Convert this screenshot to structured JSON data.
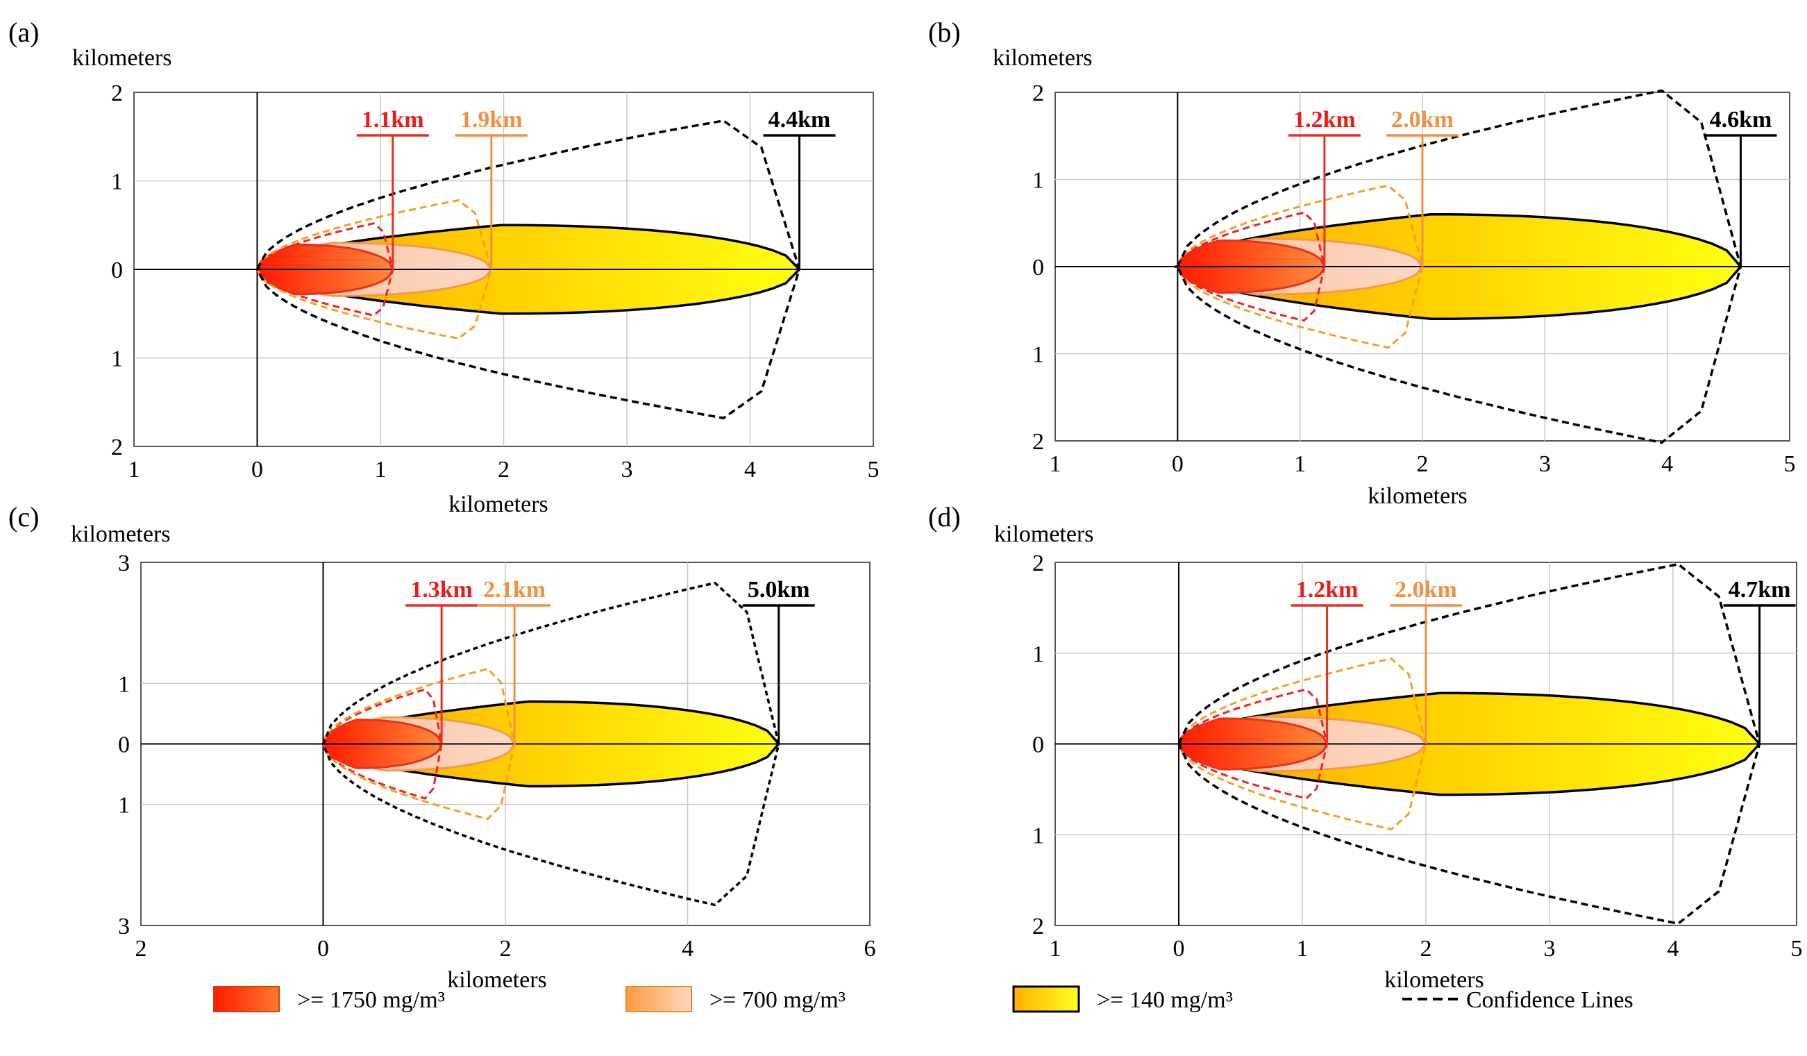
{
  "figure": {
    "legend": {
      "items": [
        {
          "key": "red",
          "label": ">= 1750 mg/m³",
          "color": "#ff2a00"
        },
        {
          "key": "orange",
          "label": ">= 700 mg/m³",
          "color": "#f7a25a"
        },
        {
          "key": "yellow",
          "label": ">= 140 mg/m³",
          "color": "#ffd000"
        },
        {
          "key": "confidence",
          "label": "Confidence Lines",
          "color": "#000000"
        }
      ]
    }
  },
  "chart_data": [
    {
      "type": "area",
      "panel": "(a)",
      "ylabel_top": "kilometers",
      "xlabel": "kilometers",
      "xlim": [
        -1,
        5
      ],
      "ylim": [
        -2,
        2
      ],
      "x_ticks": [
        -1,
        0,
        1,
        2,
        3,
        4,
        5
      ],
      "x_tick_labels": [
        "1",
        "0",
        "1",
        "2",
        "3",
        "4",
        "5"
      ],
      "y_ticks": [
        2,
        1,
        0,
        -1,
        -2
      ],
      "y_tick_labels": [
        "2",
        "1",
        "0",
        "1",
        "2"
      ],
      "zones": [
        {
          "name": "red",
          "threshold": ">= 1750 mg/m³",
          "distance_km": 1.1,
          "label": "1.1km",
          "width_km": 0.28,
          "conf_width_km": 0.52
        },
        {
          "name": "orange",
          "threshold": ">= 700 mg/m³",
          "distance_km": 1.9,
          "label": "1.9km",
          "width_km": 0.3,
          "conf_width_km": 0.78
        },
        {
          "name": "yellow",
          "threshold": ">= 140 mg/m³",
          "distance_km": 4.4,
          "label": "4.4km",
          "width_km": 0.5,
          "conf_width_km": 1.68
        }
      ]
    },
    {
      "type": "area",
      "panel": "(b)",
      "ylabel_top": "kilometers",
      "xlabel": "kilometers",
      "xlim": [
        -1,
        5
      ],
      "ylim": [
        -2,
        2
      ],
      "x_ticks": [
        -1,
        0,
        1,
        2,
        3,
        4,
        5
      ],
      "x_tick_labels": [
        "1",
        "0",
        "1",
        "2",
        "3",
        "4",
        "5"
      ],
      "y_ticks": [
        2,
        1,
        0,
        -1,
        -2
      ],
      "y_tick_labels": [
        "2",
        "1",
        "0",
        "1",
        "2"
      ],
      "zones": [
        {
          "name": "red",
          "threshold": ">= 1750 mg/m³",
          "distance_km": 1.2,
          "label": "1.2km",
          "width_km": 0.3,
          "conf_width_km": 0.62
        },
        {
          "name": "orange",
          "threshold": ">= 700 mg/m³",
          "distance_km": 2.0,
          "label": "2.0km",
          "width_km": 0.32,
          "conf_width_km": 0.93
        },
        {
          "name": "yellow",
          "threshold": ">= 140 mg/m³",
          "distance_km": 4.6,
          "label": "4.6km",
          "width_km": 0.6,
          "conf_width_km": 2.02
        }
      ]
    },
    {
      "type": "area",
      "panel": "(c)",
      "ylabel_top": "kilometers",
      "xlabel": "kilometers",
      "xlim": [
        -2,
        6
      ],
      "ylim": [
        -3,
        3
      ],
      "x_ticks": [
        -2,
        0,
        2,
        4,
        6
      ],
      "x_tick_labels": [
        "2",
        "0",
        "2",
        "4",
        "6"
      ],
      "y_ticks": [
        3,
        1,
        0,
        -1,
        -3
      ],
      "y_tick_labels": [
        "3",
        "1",
        "0",
        "1",
        "3"
      ],
      "zones": [
        {
          "name": "red",
          "threshold": ">= 1750 mg/m³",
          "distance_km": 1.3,
          "label": "1.3km",
          "width_km": 0.4,
          "conf_width_km": 0.9
        },
        {
          "name": "orange",
          "threshold": ">= 700 mg/m³",
          "distance_km": 2.1,
          "label": "2.1km",
          "width_km": 0.44,
          "conf_width_km": 1.24
        },
        {
          "name": "yellow",
          "threshold": ">= 140 mg/m³",
          "distance_km": 5.0,
          "label": "5.0km",
          "width_km": 0.7,
          "conf_width_km": 2.66
        }
      ]
    },
    {
      "type": "area",
      "panel": "(d)",
      "ylabel_top": "kilometers",
      "xlabel": "kilometers",
      "xlim": [
        -1,
        5
      ],
      "ylim": [
        -2,
        2
      ],
      "x_ticks": [
        -1,
        0,
        1,
        2,
        3,
        4,
        5
      ],
      "x_tick_labels": [
        "1",
        "0",
        "1",
        "2",
        "3",
        "4",
        "5"
      ],
      "y_ticks": [
        2,
        1,
        0,
        -1,
        -2
      ],
      "y_tick_labels": [
        "2",
        "1",
        "0",
        "1",
        "2"
      ],
      "zones": [
        {
          "name": "red",
          "threshold": ">= 1750 mg/m³",
          "distance_km": 1.2,
          "label": "1.2km",
          "width_km": 0.28,
          "conf_width_km": 0.6
        },
        {
          "name": "orange",
          "threshold": ">= 700 mg/m³",
          "distance_km": 2.0,
          "label": "2.0km",
          "width_km": 0.3,
          "conf_width_km": 0.94
        },
        {
          "name": "yellow",
          "threshold": ">= 140 mg/m³",
          "distance_km": 4.7,
          "label": "4.7km",
          "width_km": 0.56,
          "conf_width_km": 1.98
        }
      ]
    }
  ]
}
